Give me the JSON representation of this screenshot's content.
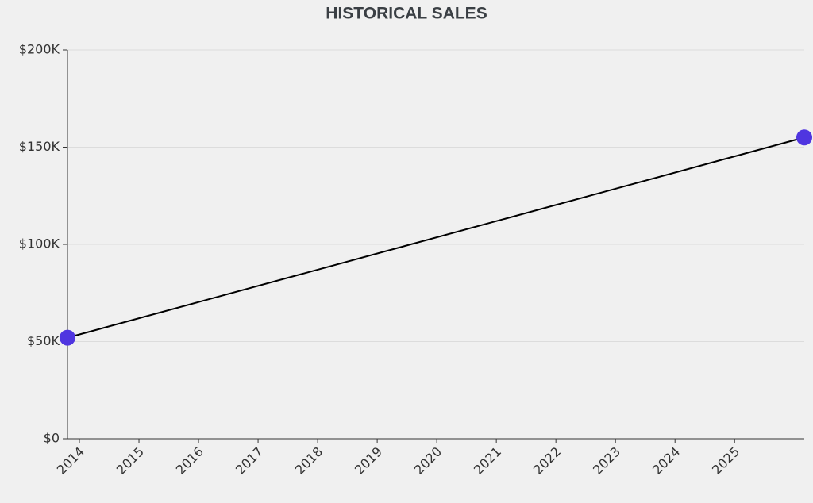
{
  "chart_data": {
    "type": "line",
    "title": "HISTORICAL SALES",
    "x": [
      2013.8,
      2026.17
    ],
    "values": [
      52000,
      155000
    ],
    "color": "#000000",
    "marker_color": "#4f35e0",
    "xlim": [
      2013.8,
      2026.17
    ],
    "xticks": [
      2014,
      2015,
      2016,
      2017,
      2018,
      2019,
      2020,
      2021,
      2022,
      2023,
      2024,
      2025
    ],
    "ylim": [
      0,
      200000
    ],
    "yticks": [
      {
        "value": 0,
        "label": "$0"
      },
      {
        "value": 50000,
        "label": "$50K"
      },
      {
        "value": 100000,
        "label": "$100K"
      },
      {
        "value": 150000,
        "label": "$150K"
      },
      {
        "value": 200000,
        "label": "$200K"
      }
    ],
    "grid": true
  }
}
